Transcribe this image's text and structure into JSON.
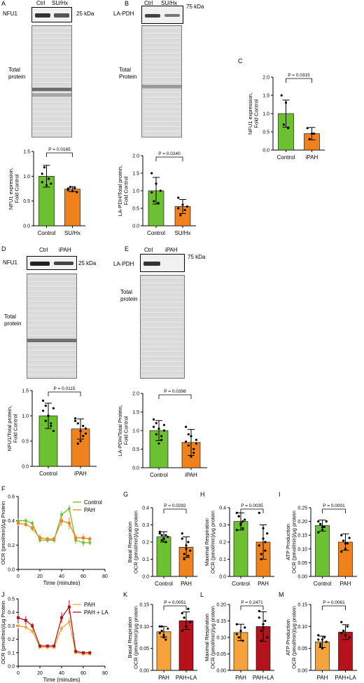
{
  "panels": {
    "A": {
      "letter": "A",
      "lane1": "Ctrl",
      "lane2": "SU/Hx",
      "band": "NFU1",
      "kda": "25 kDa",
      "gel": "Total\nprotein"
    },
    "B": {
      "letter": "B",
      "lane1": "Ctrl",
      "lane2": "SU/Hx",
      "band": "LA-PDH",
      "kda": "75 kDa",
      "gel": "Total\nProtein"
    },
    "C": {
      "letter": "C"
    },
    "D": {
      "letter": "D",
      "lane1": "Ctrl",
      "lane2": "iPAH",
      "band": "NFU1",
      "kda": "25 kDa",
      "gel": "Total\nprotein"
    },
    "E": {
      "letter": "E",
      "lane1": "Ctrl",
      "lane2": "iPAH",
      "band": "LA-PDH",
      "kda": "75 kDa",
      "gel": "Total\nprotein"
    },
    "F": {
      "letter": "F"
    },
    "G": {
      "letter": "G"
    },
    "H": {
      "letter": "H"
    },
    "I": {
      "letter": "I"
    },
    "J": {
      "letter": "J"
    },
    "K": {
      "letter": "K"
    },
    "L": {
      "letter": "L"
    },
    "M": {
      "letter": "M"
    }
  },
  "colors": {
    "green": "#6cc130",
    "orange": "#f0821e",
    "darkred": "#b5131b",
    "light_orange": "#f5a33a"
  },
  "chart_data": [
    {
      "id": "A",
      "type": "bar",
      "categories": [
        "Control",
        "SU/Hx"
      ],
      "values": [
        1.0,
        0.74
      ],
      "errors": [
        0.22,
        0.05
      ],
      "ylabel": "NFU1 expression,\nFold Control",
      "ylim": [
        0,
        1.5
      ],
      "yticks": [
        "0.0",
        "0.5",
        "1.0",
        "1.5"
      ],
      "pvalue": "P = 0.0165",
      "points": [
        [
          0.88,
          1.18,
          0.82,
          0.95,
          0.85,
          1.05
        ],
        [
          0.72,
          0.78,
          0.7,
          0.76,
          0.68,
          0.75
        ]
      ]
    },
    {
      "id": "B",
      "type": "bar",
      "categories": [
        "Control",
        "SU/Hx"
      ],
      "values": [
        1.0,
        0.55
      ],
      "errors": [
        0.38,
        0.2
      ],
      "ylabel": "LA-PDH/Total protein,\nFold Control",
      "ylim": [
        0,
        2.0
      ],
      "yticks": [
        "0.0",
        "0.5",
        "1.0",
        "1.5",
        "2.0"
      ],
      "pvalue": "P = 0.0240",
      "points": [
        [
          1.5,
          0.7,
          1.2,
          0.65,
          1.0,
          0.95
        ],
        [
          0.8,
          0.3,
          0.6,
          0.45,
          0.55,
          0.5
        ]
      ]
    },
    {
      "id": "C",
      "type": "bar",
      "categories": [
        "Control",
        "iPAH"
      ],
      "values": [
        1.0,
        0.45
      ],
      "errors": [
        0.37,
        0.17
      ],
      "ylabel": "NFU1 expression,\nFold  Control",
      "ylim": [
        0,
        2.0
      ],
      "yticks": [
        "0.0",
        "0.5",
        "1.0",
        "1.5",
        "2.0"
      ],
      "pvalue": "P = 0.0315",
      "points": [
        [
          1.5,
          0.7,
          1.3,
          0.6
        ],
        [
          0.6,
          0.3,
          0.45,
          0.45
        ]
      ]
    },
    {
      "id": "D",
      "type": "bar",
      "categories": [
        "Control",
        "iPAH"
      ],
      "values": [
        1.0,
        0.74
      ],
      "errors": [
        0.25,
        0.2
      ],
      "ylabel": "NFU1/Total protein,\nFold Control",
      "ylim": [
        0,
        1.5
      ],
      "yticks": [
        "0.0",
        "0.5",
        "1.0",
        "1.5"
      ],
      "pvalue": "P = 0.0115",
      "points": [
        [
          1.3,
          1.2,
          1.0,
          0.8,
          0.7,
          1.1,
          0.9,
          1.0,
          0.85,
          1.15
        ],
        [
          0.95,
          0.85,
          0.5,
          0.6,
          0.75,
          0.9,
          0.45,
          0.7,
          0.8,
          0.65
        ]
      ]
    },
    {
      "id": "E",
      "type": "bar",
      "categories": [
        "Control",
        "iPAH"
      ],
      "values": [
        1.0,
        0.68
      ],
      "errors": [
        0.27,
        0.35
      ],
      "ylabel": "LA-PDH/Total Protein,\nFold  Control",
      "ylim": [
        0,
        2.0
      ],
      "yticks": [
        "0.0",
        "0.5",
        "1.0",
        "1.5",
        "2.0"
      ],
      "pvalue": "P = 0.0398",
      "points": [
        [
          1.3,
          1.2,
          0.65,
          0.75,
          1.0,
          1.1,
          0.9,
          1.05,
          0.85,
          1.15
        ],
        [
          1.1,
          0.9,
          0.3,
          0.5,
          0.75,
          0.7,
          0.6,
          0.85,
          0.4,
          0.65
        ]
      ]
    },
    {
      "id": "F",
      "type": "line",
      "xlabel": "Time (minutes)",
      "ylabel": "OCR (pmol/min)/μg Protein",
      "xlim": [
        0,
        80
      ],
      "ylim": [
        0,
        0.6
      ],
      "xticks": [
        "0",
        "20",
        "40",
        "60",
        "80"
      ],
      "yticks": [
        "0.0",
        "0.2",
        "0.4",
        "0.6"
      ],
      "x": [
        0,
        7,
        13,
        20,
        27,
        33,
        40,
        47,
        53,
        60,
        66
      ],
      "series": [
        {
          "name": "Control",
          "values": [
            0.4,
            0.4,
            0.38,
            0.24,
            0.24,
            0.24,
            0.45,
            0.5,
            0.24,
            0.22,
            0.22
          ],
          "err": [
            0.02,
            0.02,
            0.02,
            0.02,
            0.02,
            0.02,
            0.03,
            0.03,
            0.03,
            0.03,
            0.02
          ]
        },
        {
          "name": "PAH",
          "values": [
            0.38,
            0.37,
            0.34,
            0.26,
            0.25,
            0.25,
            0.4,
            0.38,
            0.26,
            0.26,
            0.25
          ],
          "err": [
            0.02,
            0.02,
            0.03,
            0.03,
            0.02,
            0.02,
            0.04,
            0.05,
            0.03,
            0.03,
            0.02
          ]
        }
      ]
    },
    {
      "id": "G",
      "type": "bar",
      "categories": [
        "Control",
        "PAH"
      ],
      "values": [
        0.23,
        0.17
      ],
      "errors": [
        0.03,
        0.06
      ],
      "ylabel": "Basal Respiration\nOCR (pmol/min)/μg protein",
      "ylim": [
        0,
        0.4
      ],
      "yticks": [
        "0.0",
        "0.1",
        "0.2",
        "0.3",
        "0.4"
      ],
      "pvalue": "P = 0.0292",
      "points": [
        [
          0.26,
          0.24,
          0.22,
          0.2,
          0.23,
          0.25,
          0.21,
          0.22,
          0.24
        ],
        [
          0.22,
          0.1,
          0.16,
          0.2,
          0.15,
          0.25,
          0.13,
          0.18,
          0.12
        ]
      ]
    },
    {
      "id": "H",
      "type": "bar",
      "categories": [
        "Control",
        "PAH"
      ],
      "values": [
        0.32,
        0.2
      ],
      "errors": [
        0.05,
        0.1
      ],
      "ylabel": "Maximal Respiration\nOCR (pmol/min)/μg protein",
      "ylim": [
        0,
        0.4
      ],
      "yticks": [
        "0.0",
        "0.1",
        "0.2",
        "0.3",
        "0.4"
      ],
      "pvalue": "P = 0.0035",
      "points": [
        [
          0.37,
          0.35,
          0.3,
          0.28,
          0.33,
          0.27,
          0.35,
          0.31,
          0.32
        ],
        [
          0.37,
          0.1,
          0.22,
          0.15,
          0.25,
          0.18,
          0.13,
          0.28,
          0.2
        ]
      ]
    },
    {
      "id": "I",
      "type": "bar",
      "categories": [
        "Control",
        "PAH"
      ],
      "values": [
        0.185,
        0.125
      ],
      "errors": [
        0.02,
        0.03
      ],
      "ylabel": "ATP Production\nOCR (pmol/min)/μg protein",
      "ylim": [
        0,
        0.25
      ],
      "yticks": [
        "0.00",
        "0.05",
        "0.10",
        "0.15",
        "0.20",
        "0.25"
      ],
      "pvalue": "P = 0.0001",
      "points": [
        [
          0.2,
          0.19,
          0.17,
          0.18,
          0.2,
          0.16,
          0.19,
          0.18
        ],
        [
          0.15,
          0.13,
          0.1,
          0.12,
          0.14,
          0.09,
          0.13,
          0.12
        ]
      ]
    },
    {
      "id": "J",
      "type": "line",
      "xlabel": "Time (minutes)",
      "ylabel": "OCR (pmol/min)/μg Protein",
      "xlim": [
        0,
        80
      ],
      "ylim": [
        0,
        0.5
      ],
      "xticks": [
        "0",
        "20",
        "40",
        "60",
        "80"
      ],
      "yticks": [
        "0.0",
        "0.1",
        "0.2",
        "0.3",
        "0.4",
        "0.5"
      ],
      "x": [
        0,
        7,
        13,
        20,
        27,
        33,
        40,
        47,
        53,
        60,
        66
      ],
      "series": [
        {
          "name": "PAH",
          "values": [
            0.3,
            0.29,
            0.26,
            0.14,
            0.14,
            0.14,
            0.28,
            0.33,
            0.1,
            0.09,
            0.09
          ],
          "err": [
            0.02,
            0.02,
            0.02,
            0.01,
            0.01,
            0.01,
            0.02,
            0.03,
            0.01,
            0.01,
            0.01
          ]
        },
        {
          "name": "PAH + LA",
          "values": [
            0.36,
            0.34,
            0.3,
            0.15,
            0.15,
            0.15,
            0.36,
            0.44,
            0.11,
            0.1,
            0.1
          ],
          "err": [
            0.03,
            0.03,
            0.02,
            0.01,
            0.01,
            0.01,
            0.04,
            0.05,
            0.01,
            0.01,
            0.01
          ]
        }
      ]
    },
    {
      "id": "K",
      "type": "bar",
      "categories": [
        "PAH",
        "PAH+LA"
      ],
      "values": [
        0.088,
        0.113
      ],
      "errors": [
        0.012,
        0.02
      ],
      "ylabel": "Basal Respiration\nOCR (pmol/min)/μg protein",
      "ylim": [
        0,
        0.15
      ],
      "yticks": [
        "0.00",
        "0.05",
        "0.10",
        "0.15"
      ],
      "pvalue": "P = 0.0051",
      "points": [
        [
          0.1,
          0.09,
          0.08,
          0.07,
          0.095,
          0.085,
          0.1,
          0.075
        ],
        [
          0.13,
          0.12,
          0.1,
          0.14,
          0.11,
          0.09,
          0.12,
          0.1
        ]
      ]
    },
    {
      "id": "L",
      "type": "bar",
      "categories": [
        "PAH",
        "PAH+LA"
      ],
      "values": [
        0.115,
        0.133
      ],
      "errors": [
        0.025,
        0.045
      ],
      "ylabel": "Maximal Respiration\nOCR (pmol/min)/μg protein",
      "ylim": [
        0,
        0.2
      ],
      "yticks": [
        "0.00",
        "0.05",
        "0.10",
        "0.15",
        "0.20"
      ],
      "pvalue": "P = 0.2471",
      "points": [
        [
          0.14,
          0.1,
          0.12,
          0.09,
          0.13,
          0.11,
          0.1,
          0.12
        ],
        [
          0.18,
          0.09,
          0.13,
          0.15,
          0.1,
          0.16,
          0.12,
          0.14
        ]
      ]
    },
    {
      "id": "M",
      "type": "bar",
      "categories": [
        "PAH",
        "PAH+LA"
      ],
      "values": [
        0.065,
        0.087
      ],
      "errors": [
        0.013,
        0.017
      ],
      "ylabel": "ATP Production\nOCR (pmol/min)/μg protein",
      "ylim": [
        0,
        0.15
      ],
      "yticks": [
        "0.00",
        "0.05",
        "0.10",
        "0.15"
      ],
      "pvalue": "P = 0.0061",
      "points": [
        [
          0.07,
          0.06,
          0.05,
          0.075,
          0.065,
          0.08,
          0.055,
          0.07
        ],
        [
          0.11,
          0.09,
          0.08,
          0.1,
          0.075,
          0.085,
          0.09,
          0.08
        ]
      ]
    }
  ]
}
